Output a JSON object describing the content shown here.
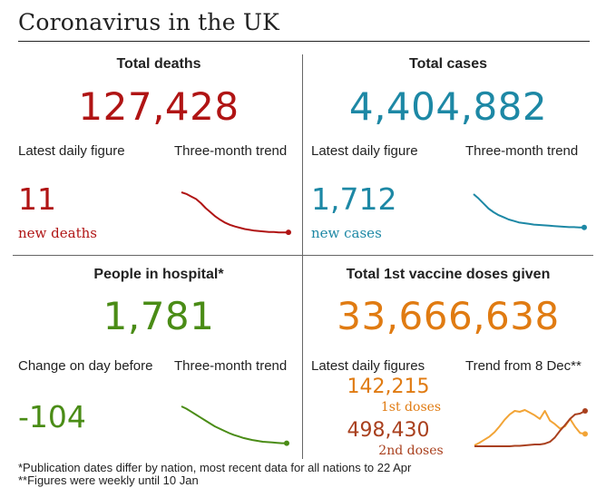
{
  "title": "Coronavirus in the UK",
  "colors": {
    "deaths": "#b01414",
    "cases": "#1d88a5",
    "hospital": "#4a8c16",
    "vaccine": "#e07b12",
    "vaccine_first": "#f2a436",
    "vaccine_second": "#a9401e"
  },
  "deaths": {
    "heading": "Total deaths",
    "total": "127,428",
    "daily_label": "Latest daily figure",
    "trend_label": "Three-month trend",
    "daily_value": "11",
    "daily_sub": "new deaths",
    "trend_values": [
      100,
      96,
      90,
      84,
      74,
      62,
      52,
      42,
      34,
      27,
      22,
      18,
      15,
      12,
      10,
      8,
      7,
      6,
      5,
      5,
      4,
      4,
      4
    ]
  },
  "cases": {
    "heading": "Total cases",
    "total": "4,404,882",
    "daily_label": "Latest daily figure",
    "trend_label": "Three-month trend",
    "daily_value": "1,712",
    "daily_sub": "new cases",
    "trend_values": [
      100,
      88,
      74,
      60,
      50,
      42,
      36,
      30,
      26,
      22,
      20,
      18,
      16,
      15,
      14,
      13,
      12,
      11,
      10,
      9,
      9,
      8,
      8
    ]
  },
  "hospital": {
    "heading": "People in hospital*",
    "total": "1,781",
    "change_label": "Change on day before",
    "trend_label": "Three-month trend",
    "change_value": "-104",
    "trend_values": [
      100,
      94,
      86,
      78,
      70,
      62,
      54,
      46,
      40,
      34,
      28,
      23,
      19,
      15,
      12,
      9,
      7,
      5,
      4,
      3,
      2,
      1,
      1
    ]
  },
  "vaccine": {
    "heading": "Total 1st vaccine doses given",
    "total": "33,666,638",
    "daily_label": "Latest daily figures",
    "trend_label": "Trend from 8 Dec**",
    "first_value": "142,215",
    "first_sub": "1st doses",
    "second_value": "498,430",
    "second_sub": "2nd doses",
    "trend_first": [
      2,
      8,
      15,
      22,
      32,
      45,
      60,
      72,
      80,
      78,
      82,
      76,
      70,
      62,
      80,
      58,
      50,
      40,
      45,
      62,
      44,
      30,
      28
    ],
    "trend_second": [
      0,
      0,
      0,
      0,
      0,
      0,
      0,
      0,
      1,
      1,
      2,
      3,
      4,
      4,
      6,
      10,
      20,
      35,
      48,
      62,
      72,
      74,
      80
    ]
  },
  "footnotes": {
    "note1": "*Publication dates differ by nation, most recent data for all nations to 22 Apr",
    "note2": "**Figures were weekly until 10 Jan"
  }
}
